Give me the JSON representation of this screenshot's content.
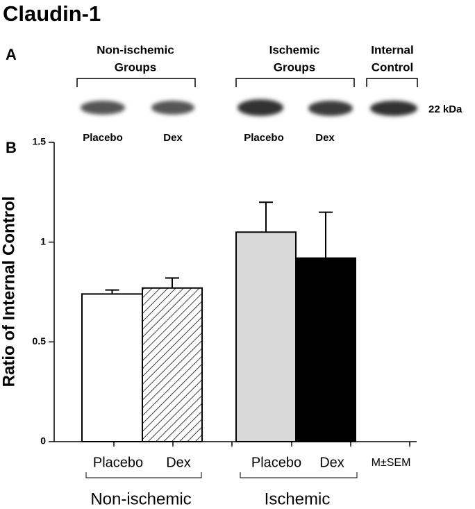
{
  "title": "Claudin-1",
  "panel_a": {
    "panel_label": "A",
    "groups": [
      {
        "lines": [
          "Non-ischemic",
          "Groups"
        ]
      },
      {
        "lines": [
          "Ischemic",
          "Groups"
        ]
      },
      {
        "lines": [
          "Internal",
          "Control"
        ]
      }
    ],
    "lanes": [
      "Placebo",
      "Dex",
      "Placebo",
      "Dex"
    ],
    "marker": "22 kDa"
  },
  "chart_data": {
    "type": "bar",
    "panel_label": "B",
    "y_label": "Ratio of Internal Control",
    "categories": [
      "Placebo",
      "Dex",
      "Placebo",
      "Dex"
    ],
    "values": [
      0.74,
      0.77,
      1.05,
      0.92
    ],
    "errors": [
      0.02,
      0.05,
      0.15,
      0.23
    ],
    "colors": [
      "#ffffff",
      "#ffffff",
      "#d9d9d9",
      "#000000"
    ],
    "hatched": [
      false,
      true,
      false,
      false
    ],
    "groups": [
      "Non-ischemic",
      "Ischemic"
    ],
    "annotation": "M±SEM",
    "ylim": [
      0,
      1.5
    ],
    "yticks": [
      0,
      0.5,
      1,
      1.5
    ],
    "grid": false
  }
}
